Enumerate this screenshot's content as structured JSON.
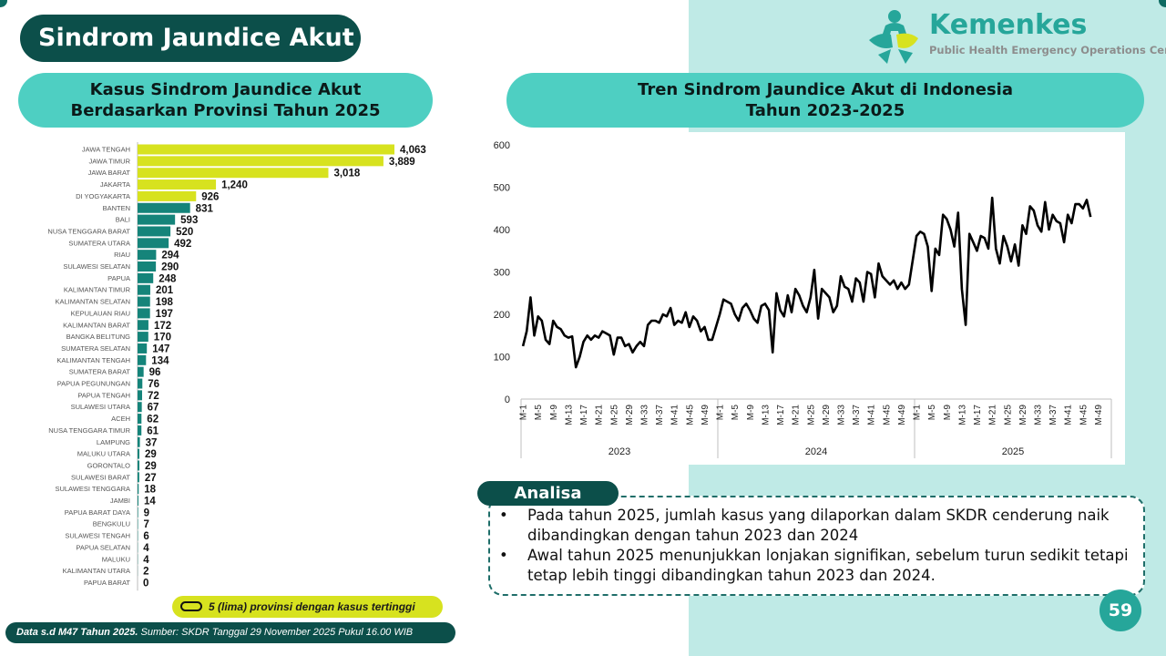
{
  "header": {
    "title": "Sindrom Jaundice Akut",
    "logo_name": "Kemenkes",
    "logo_subtitle": "Public Health Emergency Operations Center"
  },
  "left_panel": {
    "title_line1": "Kasus Sindrom Jaundice Akut",
    "title_line2": "Berdasarkan Provinsi Tahun 2025",
    "legend_text": "5 (lima) provinsi dengan kasus tertinggi"
  },
  "right_panel": {
    "title_line1": "Tren Sindrom Jaundice Akut di Indonesia",
    "title_line2": "Tahun 2023-2025"
  },
  "analisa": {
    "label": "Analisa",
    "items": [
      "Pada tahun 2025, jumlah kasus yang dilaporkan dalam SKDR cenderung naik dibandingkan dengan tahun 2023 dan 2024",
      "Awal tahun 2025 menunjukkan lonjakan signifikan, sebelum turun sedikit tetapi tetap lebih tinggi dibandingkan tahun 2023 dan 2024."
    ]
  },
  "footer": {
    "bold": "Data s.d M47 Tahun 2025.",
    "rest": " Sumber: SKDR Tanggal 29 November 2025 Pukul 16.00 WIB"
  },
  "page_number": "59",
  "colors": {
    "top5": "#d7e21f",
    "others": "#15847a",
    "dark_teal": "#0c4f4a",
    "pill_teal": "#4ecfc2",
    "bg_mint": "#bfeae6"
  },
  "chart_data": [
    {
      "type": "bar",
      "orientation": "horizontal",
      "highlight_top_n": 5,
      "categories": [
        "JAWA TENGAH",
        "JAWA TIMUR",
        "JAWA BARAT",
        "JAKARTA",
        "DI YOGYAKARTA",
        "BANTEN",
        "BALI",
        "NUSA TENGGARA BARAT",
        "SUMATERA UTARA",
        "RIAU",
        "SULAWESI SELATAN",
        "PAPUA",
        "KALIMANTAN TIMUR",
        "KALIMANTAN SELATAN",
        "KEPULAUAN RIAU",
        "KALIMANTAN BARAT",
        "BANGKA BELITUNG",
        "SUMATERA SELATAN",
        "KALIMANTAN TENGAH",
        "SUMATERA BARAT",
        "PAPUA PEGUNUNGAN",
        "PAPUA TENGAH",
        "SULAWESI UTARA",
        "ACEH",
        "NUSA TENGGARA TIMUR",
        "LAMPUNG",
        "MALUKU UTARA",
        "GORONTALO",
        "SULAWESI BARAT",
        "SULAWESI TENGGARA",
        "JAMBI",
        "PAPUA BARAT DAYA",
        "BENGKULU",
        "SULAWESI TENGAH",
        "PAPUA SELATAN",
        "MALUKU",
        "KALIMANTAN UTARA",
        "PAPUA BARAT"
      ],
      "values": [
        4063,
        3889,
        3018,
        1240,
        926,
        831,
        593,
        520,
        492,
        294,
        290,
        248,
        201,
        198,
        197,
        172,
        170,
        147,
        134,
        96,
        76,
        72,
        67,
        62,
        61,
        37,
        29,
        29,
        27,
        18,
        14,
        9,
        7,
        6,
        4,
        4,
        2,
        0
      ],
      "value_labels": [
        "4,063",
        "3,889",
        "3,018",
        "1,240",
        "926",
        "831",
        "593",
        "520",
        "492",
        "294",
        "290",
        "248",
        "201",
        "198",
        "197",
        "172",
        "170",
        "147",
        "134",
        "96",
        "76",
        "72",
        "67",
        "62",
        "61",
        "37",
        "29",
        "29",
        "27",
        "18",
        "14",
        "9",
        "7",
        "6",
        "4",
        "4",
        "2",
        "0"
      ]
    },
    {
      "type": "line",
      "ylim": [
        0,
        600
      ],
      "yticks": [
        0,
        100,
        200,
        300,
        400,
        500,
        600
      ],
      "years": [
        "2023",
        "2024",
        "2025"
      ],
      "xtick_labels": [
        "M-1",
        "M-5",
        "M-9",
        "M-13",
        "M-17",
        "M-21",
        "M-25",
        "M-29",
        "M-33",
        "M-37",
        "M-41",
        "M-45",
        "M-49"
      ],
      "series": [
        {
          "year": "2023",
          "values": [
            125,
            160,
            240,
            150,
            195,
            185,
            140,
            130,
            185,
            170,
            165,
            150,
            145,
            148,
            75,
            100,
            135,
            150,
            140,
            150,
            145,
            160,
            155,
            150,
            105,
            145,
            145,
            125,
            130,
            110,
            125,
            135,
            125,
            175,
            185,
            185,
            180,
            200,
            195,
            215,
            175,
            185,
            180,
            205,
            170,
            195,
            185,
            160,
            170,
            140,
            140
          ]
        },
        {
          "year": "2024",
          "values": [
            200,
            235,
            230,
            225,
            200,
            185,
            215,
            225,
            210,
            190,
            180,
            220,
            225,
            210,
            110,
            250,
            210,
            195,
            245,
            205,
            260,
            245,
            220,
            205,
            240,
            305,
            190,
            260,
            250,
            240,
            205,
            220,
            290,
            265,
            260,
            230,
            285,
            275,
            230,
            300,
            295,
            240,
            320,
            290,
            280,
            270,
            280,
            260,
            275,
            260,
            270
          ]
        },
        {
          "year": "2025",
          "values": [
            385,
            395,
            390,
            360,
            255,
            355,
            340,
            435,
            425,
            400,
            360,
            440,
            260,
            175,
            390,
            370,
            350,
            385,
            380,
            355,
            475,
            355,
            320,
            385,
            360,
            325,
            365,
            315,
            410,
            390,
            455,
            445,
            410,
            395,
            465,
            400,
            435,
            420,
            415,
            370,
            435,
            415,
            460,
            460,
            450,
            470,
            430
          ]
        }
      ]
    }
  ]
}
